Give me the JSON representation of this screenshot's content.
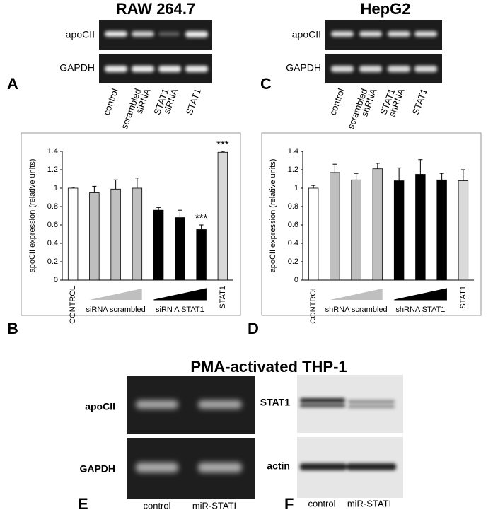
{
  "panels": {
    "A": {
      "letter": "A",
      "title": "RAW 264.7",
      "rows": [
        "apoCII",
        "GAPDH"
      ],
      "lanes": [
        [
          "control"
        ],
        [
          "scrambled",
          "siRNA"
        ],
        [
          "STAT1",
          "siRNA"
        ],
        [
          "STAT1"
        ]
      ]
    },
    "C": {
      "letter": "C",
      "title": "HepG2",
      "rows": [
        "apoCII",
        "GAPDH"
      ],
      "lanes": [
        [
          "control"
        ],
        [
          "scrambled",
          "shRNA"
        ],
        [
          "STAT1",
          "shRNA"
        ],
        [
          "STAT1"
        ]
      ]
    },
    "E": {
      "letter": "E",
      "title": "PMA-activated THP-1",
      "rows": [
        "apoCII",
        "GAPDH"
      ],
      "lanes": [
        "control",
        "miR-STATI"
      ]
    },
    "F": {
      "letter": "F",
      "rows": [
        "STAT1",
        "actin"
      ],
      "lanes": [
        "control",
        "miR-STATI"
      ]
    }
  },
  "chart_data": [
    {
      "type": "bar",
      "panel_letter": "B",
      "y_label": "apoCII expression (relative units)",
      "categories": [
        "CONTROL",
        null,
        null,
        null,
        null,
        null,
        null,
        "STAT1"
      ],
      "group_labels": [
        "siRNA scrambled",
        "siRN A STAT1"
      ],
      "values": [
        1.0,
        0.95,
        0.99,
        1.0,
        0.76,
        0.68,
        0.55,
        1.39
      ],
      "errors": [
        0.01,
        0.07,
        0.1,
        0.11,
        0.03,
        0.08,
        0.05,
        0.01
      ],
      "colors": [
        "#ffffff",
        "#bfbfbf",
        "#bfbfbf",
        "#bfbfbf",
        "#000000",
        "#000000",
        "#000000",
        "#d9d9d9"
      ],
      "annotations": [
        {
          "text": "***",
          "index": 6
        },
        {
          "text": "***",
          "index": 7
        }
      ],
      "ylim": [
        0,
        1.4
      ],
      "yticks": [
        0,
        0.2,
        0.4,
        0.6,
        0.8,
        1,
        1.2,
        1.4
      ]
    },
    {
      "type": "bar",
      "panel_letter": "D",
      "y_label": "apoCII expression (relative units)",
      "categories": [
        "CONTROL",
        null,
        null,
        null,
        null,
        null,
        null,
        "STAT1"
      ],
      "group_labels": [
        "shRNA scrambled",
        "shRNA STAT1"
      ],
      "values": [
        1.0,
        1.17,
        1.09,
        1.21,
        1.08,
        1.15,
        1.09,
        1.08
      ],
      "errors": [
        0.03,
        0.09,
        0.07,
        0.06,
        0.14,
        0.16,
        0.07,
        0.12
      ],
      "colors": [
        "#ffffff",
        "#bfbfbf",
        "#bfbfbf",
        "#bfbfbf",
        "#000000",
        "#000000",
        "#000000",
        "#d9d9d9"
      ],
      "annotations": [],
      "ylim": [
        0,
        1.4
      ],
      "yticks": [
        0,
        0.2,
        0.4,
        0.6,
        0.8,
        1,
        1.2,
        1.4
      ]
    }
  ]
}
